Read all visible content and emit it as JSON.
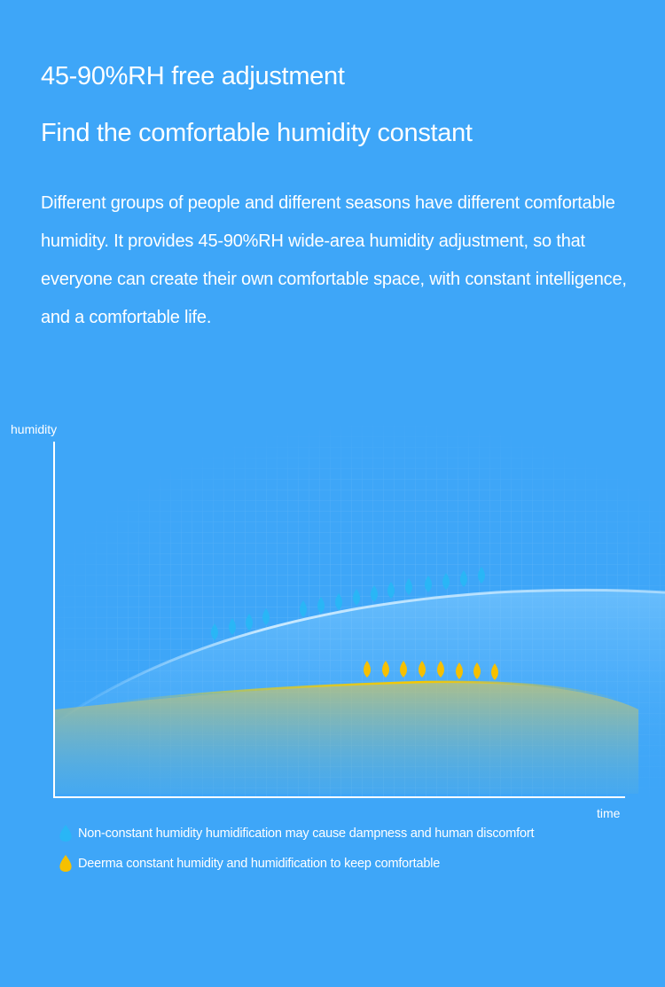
{
  "heading": {
    "line1": "45-90%RH free adjustment",
    "line2": "Find the comfortable humidity constant"
  },
  "description": "Different groups of people and different seasons have different comfortable humidity. It provides 45-90%RH wide-area humidity adjustment, so that everyone can create their own comfortable space, with constant intelligence, and a comfortable life.",
  "chart": {
    "ylabel": "humidity",
    "xlabel": "time"
  },
  "legend": [
    {
      "label": "Non-constant humidity humidification may cause dampness and human discomfort",
      "icon": "water-drop-icon",
      "color": "#29b6f6"
    },
    {
      "label": "Deerma constant humidity and humidification to keep comfortable",
      "icon": "water-drop-icon",
      "color": "#f6c000"
    }
  ],
  "colors": {
    "background": "#3ea6f8",
    "blue_drop": "#29b6f6",
    "yellow_drop": "#f6c000"
  }
}
